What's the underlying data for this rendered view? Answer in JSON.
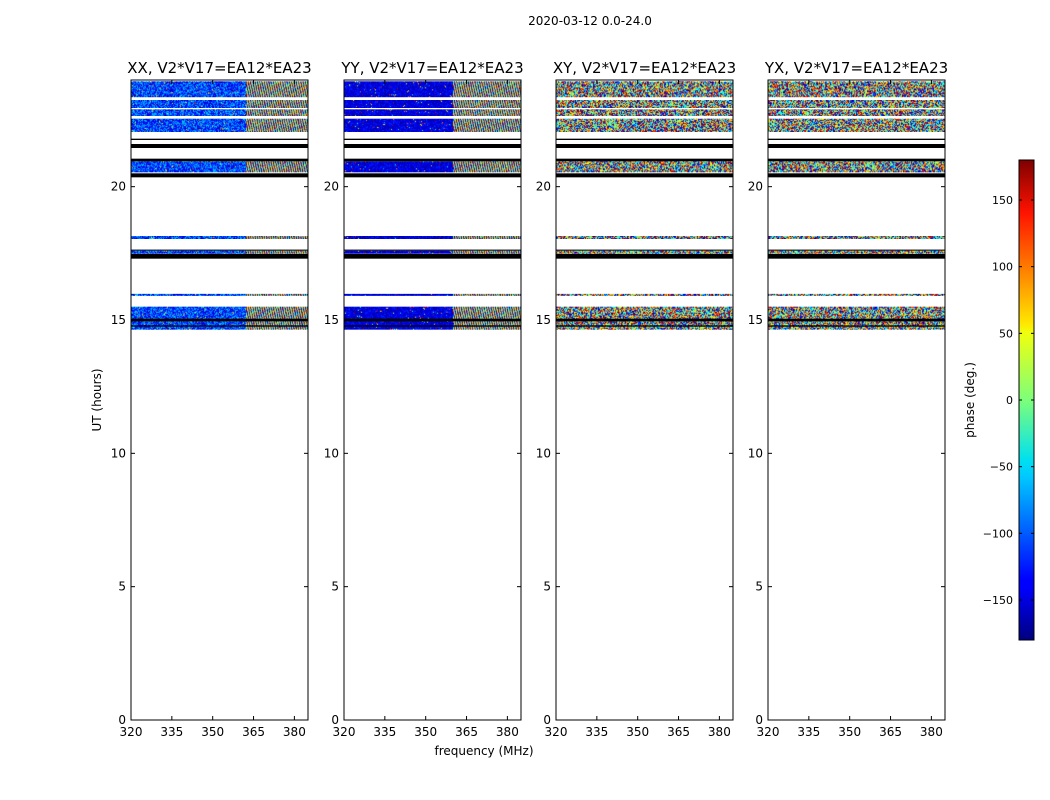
{
  "figure": {
    "suptitle": "2020-03-12 0.0-24.0"
  },
  "colors": {
    "background": "#ffffff",
    "axis": "#000000",
    "flag_black": "#000000"
  },
  "chart_data": {
    "type": "heatmap",
    "ylabel": "UT (hours)",
    "xlabel": "frequency (MHz)",
    "xlim": [
      320,
      385
    ],
    "ylim": [
      0,
      24
    ],
    "xticks": [
      320,
      335,
      350,
      365,
      380
    ],
    "yticks": [
      0,
      5,
      10,
      15,
      20
    ],
    "panels": [
      {
        "title": "XX, V2*V17=EA12*EA23",
        "dominant_phase": -110,
        "gradient_start_mhz": 362,
        "noise": "medium"
      },
      {
        "title": "YY, V2*V17=EA12*EA23",
        "dominant_phase": -145,
        "gradient_start_mhz": 360,
        "noise": "low"
      },
      {
        "title": "XY, V2*V17=EA12*EA23",
        "dominant_phase": 0,
        "gradient_start_mhz": 320,
        "noise": "high"
      },
      {
        "title": "YX, V2*V17=EA12*EA23",
        "dominant_phase": 0,
        "gradient_start_mhz": 320,
        "noise": "high"
      }
    ],
    "data_bands": [
      {
        "y0": 22.05,
        "y1": 23.25
      },
      {
        "y0": 23.35,
        "y1": 23.95
      },
      {
        "y0": 20.55,
        "y1": 20.95
      },
      {
        "y0": 14.65,
        "y1": 15.5
      },
      {
        "y0": 17.5,
        "y1": 17.6
      },
      {
        "y0": 18.05,
        "y1": 18.15
      },
      {
        "y0": 15.9,
        "y1": 15.98
      }
    ],
    "flag_bands": [
      {
        "y0": 21.45,
        "y1": 21.6
      },
      {
        "y0": 20.35,
        "y1": 20.5
      },
      {
        "y0": 20.95,
        "y1": 21.05
      },
      {
        "y0": 17.3,
        "y1": 17.48
      },
      {
        "y0": 17.6,
        "y1": 17.64
      },
      {
        "y0": 21.75,
        "y1": 21.8
      },
      {
        "y0": 14.95,
        "y1": 15.05
      },
      {
        "y0": 14.75,
        "y1": 14.8
      }
    ],
    "colorbar": {
      "label": "phase (deg.)",
      "range": [
        -180,
        180
      ],
      "ticks": [
        150,
        100,
        50,
        0,
        -50,
        -100,
        -150
      ],
      "tick_labels": [
        "150",
        "100",
        "50",
        "0",
        "−50",
        "−100",
        "−150"
      ],
      "colormap": "jet"
    }
  }
}
